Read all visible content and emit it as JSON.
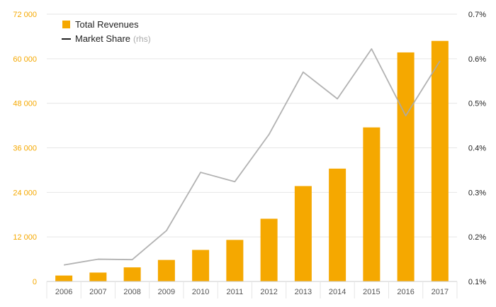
{
  "chart_data": {
    "type": "bar",
    "categories": [
      "2006",
      "2007",
      "2008",
      "2009",
      "2010",
      "2011",
      "2012",
      "2013",
      "2014",
      "2015",
      "2016",
      "2017"
    ],
    "series": [
      {
        "name": "Total Revenues",
        "type": "bar",
        "axis": "left",
        "values": [
          1600,
          2400,
          3800,
          5800,
          8500,
          11200,
          16900,
          25700,
          30400,
          41500,
          61700,
          64800
        ]
      },
      {
        "name": "Market Share",
        "name_suffix": "(rhs)",
        "type": "line",
        "axis": "right",
        "values": [
          0.137,
          0.15,
          0.149,
          0.214,
          0.345,
          0.324,
          0.43,
          0.57,
          0.51,
          0.622,
          0.472,
          0.595
        ]
      }
    ],
    "y_left": {
      "min": 0,
      "max": 72000,
      "ticks": [
        "0",
        "12 000",
        "24 000",
        "36 000",
        "48 000",
        "60 000",
        "72 000"
      ],
      "tick_values": [
        0,
        12000,
        24000,
        36000,
        48000,
        60000,
        72000
      ]
    },
    "y_right": {
      "min": 0.1,
      "max": 0.7,
      "ticks": [
        "0.1%",
        "0.2%",
        "0.3%",
        "0.4%",
        "0.5%",
        "0.6%",
        "0.7%"
      ],
      "tick_values": [
        0.1,
        0.2,
        0.3,
        0.4,
        0.5,
        0.6,
        0.7
      ]
    },
    "grid": true,
    "legend_position": "top-left",
    "colors": {
      "bar": "#f5a800",
      "line": "#aaaaaa",
      "legend_line": "#222222",
      "grid": "#e6e6e6",
      "left_ticks": "#f5a800"
    }
  }
}
